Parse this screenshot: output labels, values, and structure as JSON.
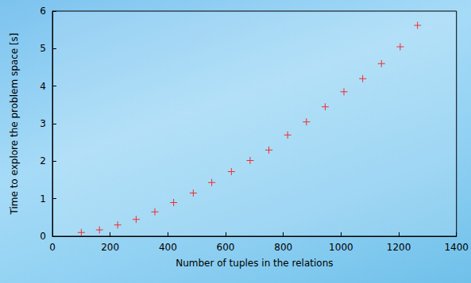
{
  "chart_data": {
    "type": "scatter",
    "x_label": "Number of tuples in the relations",
    "y_label": "Time to explore the problem space [s]",
    "x": [
      100,
      163,
      226,
      290,
      355,
      420,
      488,
      552,
      620,
      685,
      750,
      815,
      880,
      945,
      1010,
      1075,
      1140,
      1205,
      1265
    ],
    "values": [
      0.1,
      0.17,
      0.3,
      0.45,
      0.65,
      0.9,
      1.15,
      1.43,
      1.72,
      2.02,
      2.3,
      2.7,
      3.05,
      3.45,
      3.85,
      4.2,
      4.6,
      5.05,
      5.62
    ],
    "color": "#ff0000",
    "marker": "plus",
    "xlim": [
      0,
      1400
    ],
    "xticks": [
      0,
      200,
      400,
      600,
      800,
      1000,
      1200,
      1400
    ],
    "ylim": [
      0,
      6
    ],
    "yticks": [
      0,
      1,
      2,
      3,
      4,
      5,
      6
    ],
    "grid": false
  }
}
